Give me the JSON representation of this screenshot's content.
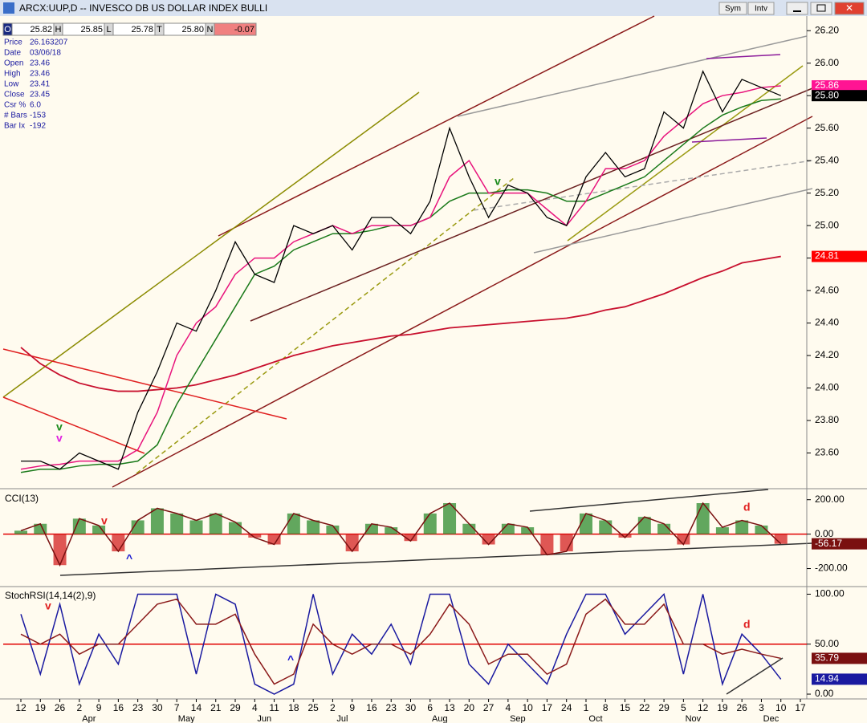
{
  "window": {
    "title": "ARCX:UUP,D -- INVESCO DB US DOLLAR INDEX BULLI",
    "buttons": [
      "Sym",
      "Intv"
    ]
  },
  "quote": [
    {
      "key": "O",
      "value": "25.82"
    },
    {
      "key": "H",
      "value": "25.85"
    },
    {
      "key": "L",
      "value": "25.78"
    },
    {
      "key": "T",
      "value": "25.80"
    },
    {
      "key": "N",
      "value": "-0.07"
    }
  ],
  "info": [
    {
      "label": "Price",
      "value": "26.163207"
    },
    {
      "label": "Date",
      "value": "03/06/18"
    },
    {
      "label": "Open",
      "value": "23.46"
    },
    {
      "label": "High",
      "value": "23.46"
    },
    {
      "label": "Low",
      "value": "23.41"
    },
    {
      "label": "Close",
      "value": "23.45"
    },
    {
      "label": "Csr %",
      "value": "6.0"
    },
    {
      "label": "# Bars",
      "value": "-153"
    },
    {
      "label": "Bar Ix",
      "value": "-192"
    }
  ],
  "x_axis": {
    "days": [
      "12",
      "19",
      "26",
      "2",
      "9",
      "16",
      "23",
      "30",
      "7",
      "14",
      "21",
      "29",
      "4",
      "11",
      "18",
      "25",
      "2",
      "9",
      "16",
      "23",
      "30",
      "6",
      "13",
      "20",
      "27",
      "4",
      "10",
      "17",
      "24",
      "1",
      "8",
      "15",
      "22",
      "29",
      "5",
      "12",
      "19",
      "26",
      "3",
      "10",
      "17"
    ],
    "months": [
      "Apr",
      "May",
      "Jun",
      "Jul",
      "Aug",
      "Sep",
      "Oct",
      "Nov",
      "Dec"
    ]
  },
  "annotations": [
    "v",
    "v",
    "v",
    "v",
    "^",
    "d",
    "v",
    "^",
    "d"
  ],
  "chart_data": [
    {
      "type": "line",
      "ylim": [
        23.39,
        26.29
      ],
      "yticks": [
        {
          "value": 23.6,
          "label": "23.60"
        },
        {
          "value": 23.8,
          "label": "23.80"
        },
        {
          "value": 24.0,
          "label": "24.00"
        },
        {
          "value": 24.2,
          "label": "24.20"
        },
        {
          "value": 24.4,
          "label": "24.40"
        },
        {
          "value": 24.6,
          "label": "24.60"
        },
        {
          "value": 24.8,
          "label": "24.80"
        },
        {
          "value": 25.0,
          "label": "25.00"
        },
        {
          "value": 25.2,
          "label": "25.20"
        },
        {
          "value": 25.4,
          "label": "25.40"
        },
        {
          "value": 25.6,
          "label": "25.60"
        },
        {
          "value": 25.8,
          "label": "25.80"
        },
        {
          "value": 26.0,
          "label": "26.00"
        },
        {
          "value": 26.2,
          "label": "26.20"
        }
      ],
      "series": [
        {
          "color": "#c8102e",
          "width": 1.8,
          "values": [
            24.25,
            24.15,
            24.08,
            24.03,
            24.0,
            23.98,
            23.98,
            23.99,
            24.0,
            24.02,
            24.05,
            24.08,
            24.12,
            24.16,
            24.2,
            24.23,
            24.26,
            24.28,
            24.3,
            24.32,
            24.33,
            24.35,
            24.37,
            24.38,
            24.39,
            24.4,
            24.41,
            24.42,
            24.43,
            24.45,
            24.48,
            24.5,
            24.54,
            24.58,
            24.63,
            24.68,
            24.72,
            24.77,
            24.79,
            24.81,
            null
          ]
        },
        {
          "color": "#1a7a1a",
          "width": 1.5,
          "values": [
            23.48,
            23.5,
            23.5,
            23.52,
            23.53,
            23.53,
            23.55,
            23.65,
            23.9,
            24.1,
            24.3,
            24.5,
            24.7,
            24.75,
            24.85,
            24.9,
            24.95,
            24.95,
            24.97,
            25.0,
            25.0,
            25.05,
            25.15,
            25.2,
            25.2,
            25.22,
            25.22,
            25.2,
            25.15,
            25.15,
            25.2,
            25.25,
            25.3,
            25.4,
            25.5,
            25.6,
            25.68,
            25.73,
            25.77,
            25.78,
            null
          ]
        },
        {
          "color": "#e8137c",
          "width": 1.5,
          "values": [
            23.5,
            23.52,
            23.53,
            23.55,
            23.55,
            23.55,
            23.62,
            23.85,
            24.2,
            24.4,
            24.5,
            24.7,
            24.8,
            24.8,
            24.9,
            24.95,
            25.0,
            24.95,
            25.0,
            25.0,
            25.0,
            25.05,
            25.3,
            25.4,
            25.2,
            25.2,
            25.2,
            25.1,
            25.0,
            25.15,
            25.35,
            25.35,
            25.4,
            25.55,
            25.65,
            25.75,
            25.8,
            25.82,
            25.85,
            25.86,
            null
          ]
        },
        {
          "color": "#000000",
          "width": 1.3,
          "values": [
            23.55,
            23.55,
            23.5,
            23.6,
            23.55,
            23.5,
            23.85,
            24.1,
            24.4,
            24.35,
            24.6,
            24.9,
            24.7,
            24.65,
            25.0,
            24.95,
            25.0,
            24.85,
            25.05,
            25.05,
            24.95,
            25.15,
            25.6,
            25.3,
            25.05,
            25.25,
            25.2,
            25.05,
            25.0,
            25.3,
            25.45,
            25.3,
            25.35,
            25.7,
            25.6,
            25.95,
            25.7,
            25.9,
            25.85,
            25.8,
            null
          ]
        }
      ],
      "last_values": [
        {
          "value": 25.86,
          "label": "25.86",
          "color": "#ff1493"
        },
        {
          "value": 25.8,
          "label": "25.80",
          "color": "#000000"
        },
        {
          "value": 24.81,
          "label": "24.81",
          "color": "#ff0000"
        }
      ]
    },
    {
      "type": "bar",
      "title": "CCI(13)",
      "ylim": [
        -300,
        250
      ],
      "yticks": [
        {
          "value": 200,
          "label": "200.00"
        },
        {
          "value": 0,
          "label": "0.00"
        },
        {
          "value": -200,
          "label": "-200.00"
        }
      ],
      "positive_color": "#2e8b2e",
      "negative_color": "#d42020",
      "line_color": "#7a1010",
      "values": [
        20,
        60,
        -180,
        90,
        50,
        -100,
        80,
        150,
        120,
        80,
        120,
        70,
        -20,
        -60,
        120,
        80,
        50,
        -100,
        60,
        40,
        -40,
        120,
        180,
        60,
        -60,
        60,
        40,
        -120,
        -100,
        120,
        80,
        -20,
        100,
        60,
        -60,
        180,
        40,
        80,
        50,
        -56.17,
        null
      ],
      "reference_lines": [
        {
          "value": 0,
          "color": "#e00000"
        }
      ],
      "last_values": [
        {
          "value": -56.17,
          "label": "-56.17",
          "color": "#7a1010"
        }
      ]
    },
    {
      "type": "line",
      "title": "StochRSI(14,14(2),9)",
      "ylim": [
        -4,
        106
      ],
      "yticks": [
        {
          "value": 100,
          "label": "100.00"
        },
        {
          "value": 50,
          "label": "50.00"
        },
        {
          "value": 0,
          "label": "0.00"
        }
      ],
      "series": [
        {
          "color": "#1a1aa0",
          "width": 1.5,
          "values": [
            80,
            20,
            90,
            10,
            60,
            30,
            100,
            100,
            100,
            20,
            100,
            90,
            10,
            0,
            10,
            100,
            20,
            60,
            40,
            70,
            30,
            100,
            100,
            30,
            10,
            50,
            30,
            10,
            60,
            100,
            100,
            60,
            80,
            100,
            20,
            100,
            10,
            60,
            40,
            14.94,
            null
          ]
        },
        {
          "color": "#8b1a1a",
          "width": 1.5,
          "values": [
            60,
            50,
            60,
            40,
            50,
            50,
            70,
            90,
            95,
            70,
            70,
            80,
            40,
            10,
            20,
            70,
            50,
            40,
            50,
            50,
            40,
            60,
            90,
            70,
            30,
            40,
            40,
            20,
            30,
            80,
            95,
            70,
            70,
            90,
            50,
            50,
            40,
            45,
            40,
            35.79,
            null
          ]
        }
      ],
      "reference_lines": [
        {
          "value": 50,
          "color": "#e00000"
        }
      ],
      "last_values": [
        {
          "value": 35.79,
          "label": "35.79",
          "color": "#7a1010"
        },
        {
          "value": 14.94,
          "label": "14.94",
          "color": "#1a1aa0"
        }
      ]
    }
  ]
}
